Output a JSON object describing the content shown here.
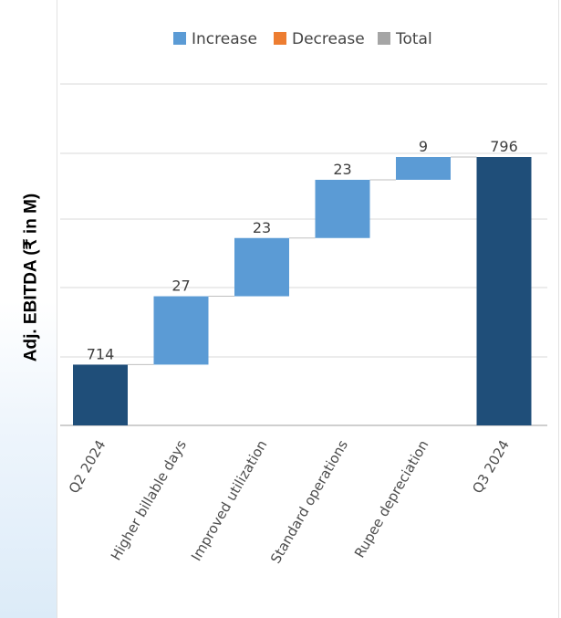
{
  "chart_data": {
    "type": "waterfall",
    "ylabel": "Adj. EBITDA (₹ in M)",
    "categories": [
      "Q2 2024",
      "Higher billable days",
      "Improved utilization",
      "Standard operations",
      "Rupee depreciation",
      "Q3 2024"
    ],
    "values": [
      714,
      27,
      23,
      23,
      9,
      796
    ],
    "kinds": [
      "total",
      "increase",
      "increase",
      "increase",
      "increase",
      "total"
    ],
    "labels": [
      "714",
      "27",
      "23",
      "23",
      "9",
      "796"
    ],
    "legend": [
      {
        "name": "Increase",
        "color": "#5b9bd5"
      },
      {
        "name": "Decrease",
        "color": "#ed7d31"
      },
      {
        "name": "Total",
        "color": "#a5a5a5"
      }
    ],
    "colors": {
      "increase": "#5b9bd5",
      "total_bar": "#1f4e79",
      "grid": "#d9d9d9"
    },
    "legend_position": "top",
    "grid": true
  }
}
